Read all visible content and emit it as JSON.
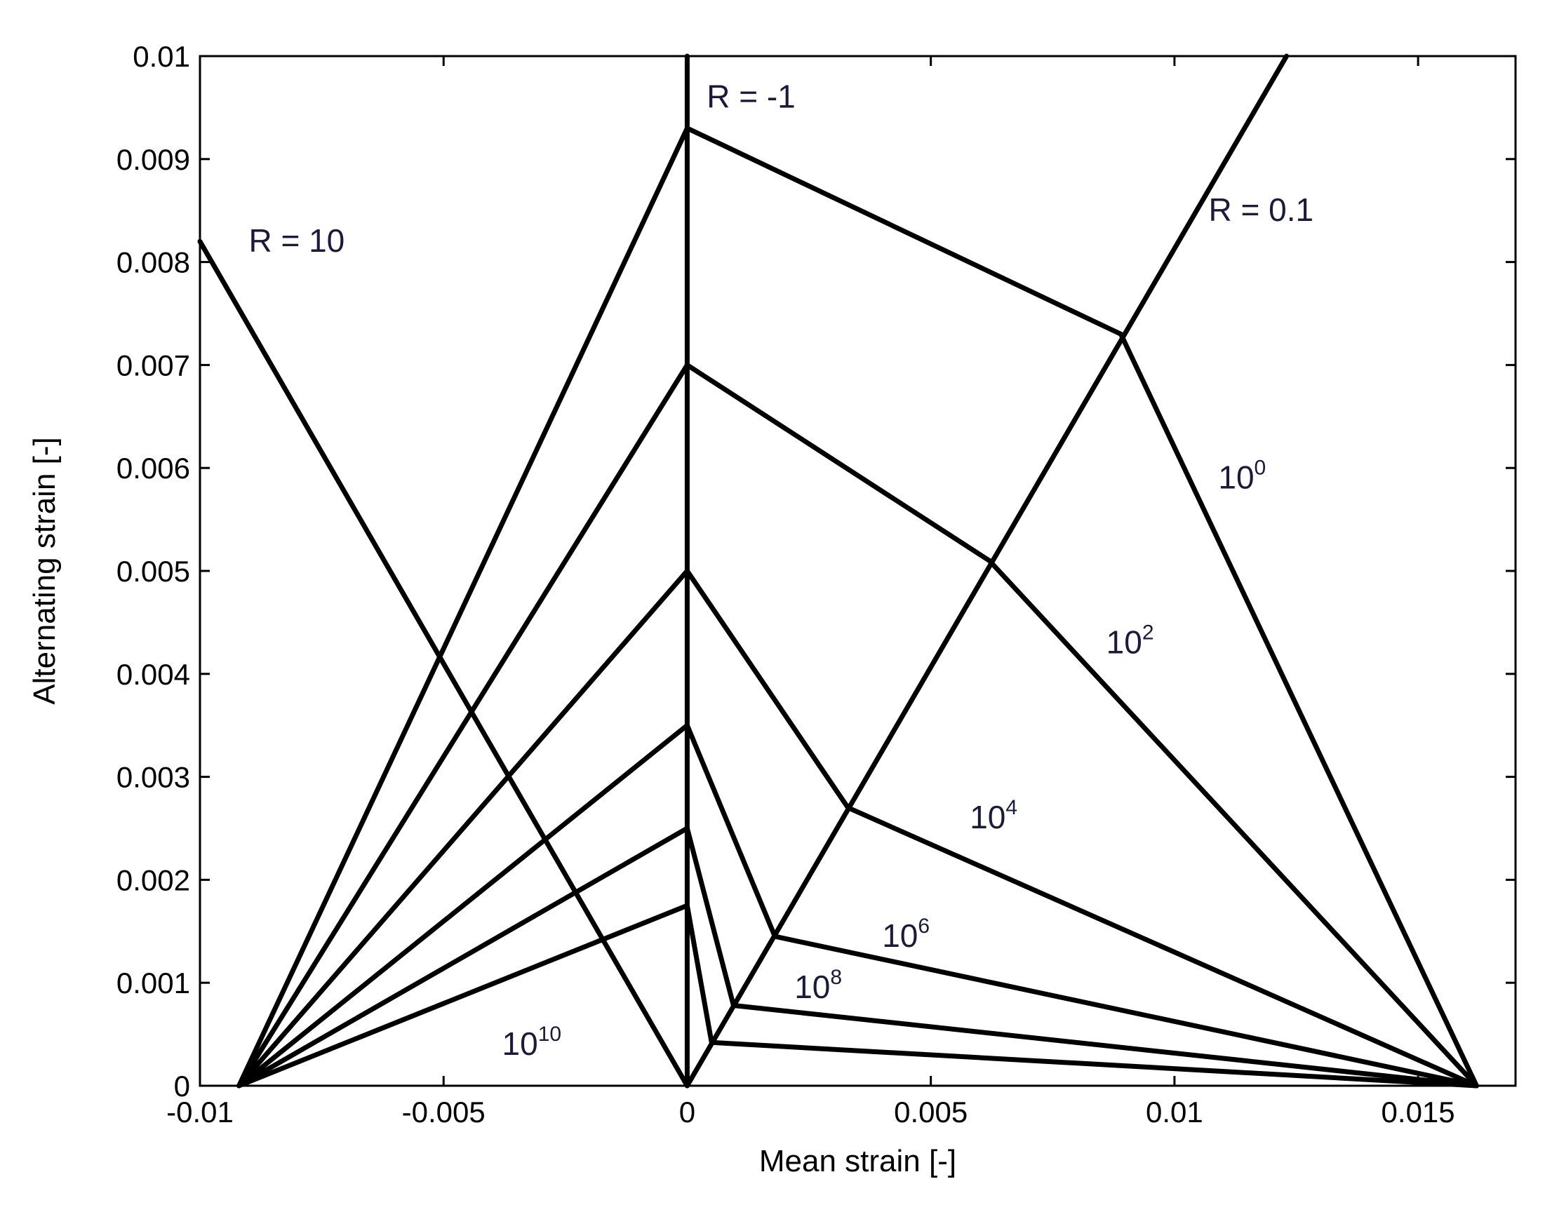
{
  "chart_data": {
    "type": "line",
    "title": "",
    "xlabel": "Mean strain [-]",
    "ylabel": "Alternating strain [-]",
    "xlim": [
      -0.01,
      0.017
    ],
    "ylim": [
      0,
      0.01
    ],
    "x_ticks": [
      {
        "value": -0.01,
        "label": "-0.01"
      },
      {
        "value": -0.005,
        "label": "-0.005"
      },
      {
        "value": 0,
        "label": "0"
      },
      {
        "value": 0.005,
        "label": "0.005"
      },
      {
        "value": 0.01,
        "label": "0.01"
      },
      {
        "value": 0.015,
        "label": "0.015"
      }
    ],
    "y_ticks": [
      {
        "value": 0,
        "label": "0"
      },
      {
        "value": 0.001,
        "label": "0.001"
      },
      {
        "value": 0.002,
        "label": "0.002"
      },
      {
        "value": 0.003,
        "label": "0.003"
      },
      {
        "value": 0.004,
        "label": "0.004"
      },
      {
        "value": 0.005,
        "label": "0.005"
      },
      {
        "value": 0.006,
        "label": "0.006"
      },
      {
        "value": 0.007,
        "label": "0.007"
      },
      {
        "value": 0.008,
        "label": "0.008"
      },
      {
        "value": 0.009,
        "label": "0.009"
      },
      {
        "value": 0.01,
        "label": "0.01"
      }
    ],
    "grid": false,
    "series": [
      {
        "id": "R=10",
        "points": [
          [
            -0.01,
            0.0082
          ],
          [
            0,
            0
          ]
        ]
      },
      {
        "id": "R=-1",
        "points": [
          [
            0,
            0
          ],
          [
            0,
            0.01
          ]
        ]
      },
      {
        "id": "R=0.1",
        "points": [
          [
            0,
            0
          ],
          [
            0.0123,
            0.01
          ]
        ]
      },
      {
        "id": "N=1e0",
        "points": [
          [
            -0.0092,
            0
          ],
          [
            0,
            0.0093
          ],
          [
            0.0089,
            0.0073
          ],
          [
            0.0162,
            0
          ]
        ]
      },
      {
        "id": "N=1e2",
        "points": [
          [
            -0.0092,
            0
          ],
          [
            0,
            0.007
          ],
          [
            0.0062,
            0.0051
          ],
          [
            0.0162,
            0
          ]
        ]
      },
      {
        "id": "N=1e4",
        "points": [
          [
            -0.0092,
            0
          ],
          [
            0,
            0.005
          ],
          [
            0.0033,
            0.0027
          ],
          [
            0.0162,
            0
          ]
        ]
      },
      {
        "id": "N=1e6",
        "points": [
          [
            -0.0092,
            0
          ],
          [
            0,
            0.0035
          ],
          [
            0.0018,
            0.00145
          ],
          [
            0.0162,
            0
          ]
        ]
      },
      {
        "id": "N=1e8",
        "points": [
          [
            -0.0092,
            0
          ],
          [
            0,
            0.0025
          ],
          [
            0.00095,
            0.00078
          ],
          [
            0.0162,
            0
          ]
        ]
      },
      {
        "id": "N=1e10",
        "points": [
          [
            -0.0092,
            0
          ],
          [
            0,
            0.00175
          ],
          [
            0.0005,
            0.00042
          ],
          [
            0.0162,
            0
          ]
        ]
      }
    ],
    "annotations": [
      {
        "id": "r10",
        "text": "R = 10",
        "sup": "",
        "x": -0.009,
        "y": 0.0081
      },
      {
        "id": "rm1",
        "text": "R = -1",
        "sup": "",
        "x": 0.0004,
        "y": 0.0095
      },
      {
        "id": "r01",
        "text": "R = 0.1",
        "sup": "",
        "x": 0.0107,
        "y": 0.0084
      },
      {
        "id": "n0",
        "text": "10",
        "sup": "0",
        "x": 0.0109,
        "y": 0.0058
      },
      {
        "id": "n2",
        "text": "10",
        "sup": "2",
        "x": 0.0086,
        "y": 0.0042
      },
      {
        "id": "n4",
        "text": "10",
        "sup": "4",
        "x": 0.0058,
        "y": 0.0025
      },
      {
        "id": "n6",
        "text": "10",
        "sup": "6",
        "x": 0.004,
        "y": 0.00135
      },
      {
        "id": "n8",
        "text": "10",
        "sup": "8",
        "x": 0.0022,
        "y": 0.00085
      },
      {
        "id": "n10",
        "text": "10",
        "sup": "10",
        "x": -0.0038,
        "y": 0.0003
      }
    ]
  }
}
